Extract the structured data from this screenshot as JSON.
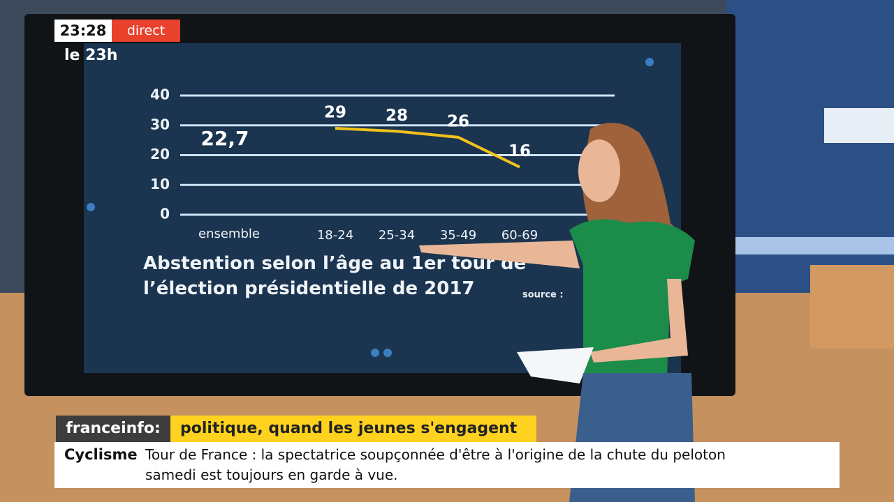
{
  "overlay": {
    "time": "23:28",
    "live": "direct",
    "program": "le 23h",
    "channel": "franceinfo:",
    "headline": "politique, quand les jeunes s'engagent",
    "ticker": {
      "category": "Cyclisme",
      "lines": [
        "Tour de France : la spectatrice soupçonnée d'être à l'origine de la chute du peloton",
        "samedi est toujours en garde à vue."
      ]
    }
  },
  "chart_data": {
    "type": "line",
    "title": "Abstention selon l’âge au 1er tour de l’élection présidentielle de 2017",
    "source": "source :",
    "overall": {
      "label": "ensemble",
      "value": 22.7,
      "value_label": "22,7"
    },
    "categories": [
      "18-24",
      "25-34",
      "35-49",
      "60-69"
    ],
    "values": [
      29,
      28,
      26,
      16
    ],
    "color": "#f2c21b",
    "ylim": [
      0,
      40
    ],
    "yticks": [
      0,
      10,
      20,
      30,
      40
    ],
    "grid": true
  }
}
